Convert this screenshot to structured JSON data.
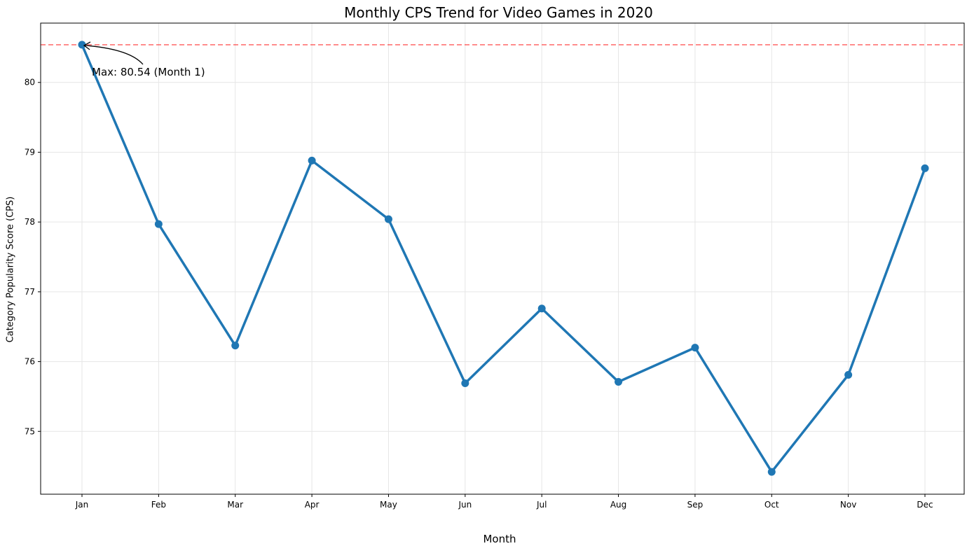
{
  "chart_data": {
    "type": "line",
    "title": "Monthly CPS Trend for Video Games in 2020",
    "xlabel": "Month",
    "ylabel": "Category Popularity Score (CPS)",
    "categories": [
      "Jan",
      "Feb",
      "Mar",
      "Apr",
      "May",
      "Jun",
      "Jul",
      "Aug",
      "Sep",
      "Oct",
      "Nov",
      "Dec"
    ],
    "series": [
      {
        "values": [
          80.54,
          77.97,
          76.23,
          78.88,
          78.04,
          75.69,
          76.76,
          75.71,
          76.2,
          74.42,
          75.81,
          78.77
        ],
        "color": "#1f77b4"
      }
    ],
    "ylim": [
      74.1,
      80.85
    ],
    "yticks": [
      75,
      76,
      77,
      78,
      79,
      80
    ],
    "grid": true,
    "reference_line": {
      "y": 80.54,
      "color": "#ff0000",
      "style": "dashed"
    },
    "annotation": {
      "text": "Max: 80.54 (Month 1)",
      "target_index": 0
    }
  }
}
